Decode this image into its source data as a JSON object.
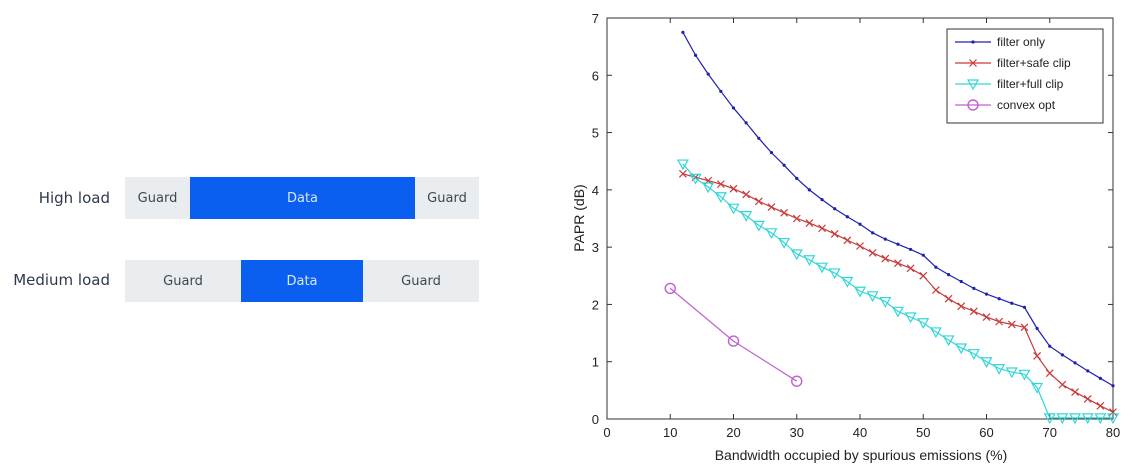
{
  "diagram": {
    "rows": [
      {
        "label": "High load",
        "segments": [
          {
            "kind": "guard",
            "text": "Guard"
          },
          {
            "kind": "data",
            "text": "Data"
          },
          {
            "kind": "guard",
            "text": "Guard"
          }
        ]
      },
      {
        "label": "Medium load",
        "segments": [
          {
            "kind": "guard",
            "text": "Guard"
          },
          {
            "kind": "data",
            "text": "Data"
          },
          {
            "kind": "guard",
            "text": "Guard"
          }
        ]
      }
    ],
    "colors": {
      "guard": "#e9edf0",
      "data": "#0a5ff0"
    }
  },
  "chart_data": {
    "type": "line",
    "title": "",
    "xlabel": "Bandwidth occupied by spurious emissions (%)",
    "ylabel": "PAPR (dB)",
    "xlim": [
      0,
      80
    ],
    "ylim": [
      0,
      7
    ],
    "xticks": [
      0,
      10,
      20,
      30,
      40,
      50,
      60,
      70,
      80
    ],
    "yticks": [
      0,
      1,
      2,
      3,
      4,
      5,
      6,
      7
    ],
    "grid": false,
    "legend_position": "top-right",
    "series": [
      {
        "name": "filter only",
        "color": "#2020b0",
        "marker": "dot",
        "x": [
          12,
          14,
          16,
          18,
          20,
          22,
          24,
          26,
          28,
          30,
          32,
          34,
          36,
          38,
          40,
          42,
          44,
          46,
          48,
          50,
          52,
          54,
          56,
          58,
          60,
          62,
          64,
          66,
          68,
          70,
          72,
          74,
          76,
          78,
          80
        ],
        "y": [
          6.75,
          6.35,
          6.02,
          5.72,
          5.43,
          5.17,
          4.9,
          4.65,
          4.43,
          4.2,
          4.0,
          3.83,
          3.67,
          3.53,
          3.4,
          3.25,
          3.14,
          3.05,
          2.96,
          2.86,
          2.65,
          2.52,
          2.4,
          2.28,
          2.18,
          2.1,
          2.02,
          1.95,
          1.58,
          1.27,
          1.12,
          0.98,
          0.84,
          0.71,
          0.58
        ]
      },
      {
        "name": "filter+safe clip",
        "color": "#c83a3a",
        "marker": "x",
        "x": [
          12,
          14,
          16,
          18,
          20,
          22,
          24,
          26,
          28,
          30,
          32,
          34,
          36,
          38,
          40,
          42,
          44,
          46,
          48,
          50,
          52,
          54,
          56,
          58,
          60,
          62,
          64,
          66,
          68,
          70,
          72,
          74,
          76,
          78,
          80
        ],
        "y": [
          4.28,
          4.22,
          4.16,
          4.1,
          4.02,
          3.92,
          3.8,
          3.7,
          3.6,
          3.5,
          3.42,
          3.33,
          3.23,
          3.12,
          3.02,
          2.9,
          2.8,
          2.72,
          2.63,
          2.5,
          2.25,
          2.1,
          1.97,
          1.88,
          1.78,
          1.7,
          1.65,
          1.6,
          1.1,
          0.8,
          0.6,
          0.47,
          0.35,
          0.23,
          0.12
        ]
      },
      {
        "name": "filter+full clip",
        "color": "#33d6d6",
        "marker": "triangle-down",
        "x": [
          12,
          14,
          16,
          18,
          20,
          22,
          24,
          26,
          28,
          30,
          32,
          34,
          36,
          38,
          40,
          42,
          44,
          46,
          48,
          50,
          52,
          54,
          56,
          58,
          60,
          62,
          64,
          66,
          68,
          70,
          72,
          74,
          76,
          78,
          80
        ],
        "y": [
          4.45,
          4.2,
          4.05,
          3.88,
          3.68,
          3.55,
          3.38,
          3.25,
          3.08,
          2.88,
          2.78,
          2.65,
          2.55,
          2.4,
          2.23,
          2.15,
          2.05,
          1.88,
          1.78,
          1.68,
          1.52,
          1.38,
          1.24,
          1.14,
          1.0,
          0.88,
          0.82,
          0.78,
          0.55,
          0.02,
          0.02,
          0.02,
          0.02,
          0.02,
          0.02
        ]
      },
      {
        "name": "convex opt",
        "color": "#c060d0",
        "marker": "circle",
        "x": [
          10,
          20,
          30
        ],
        "y": [
          2.28,
          1.36,
          0.66
        ]
      }
    ]
  }
}
